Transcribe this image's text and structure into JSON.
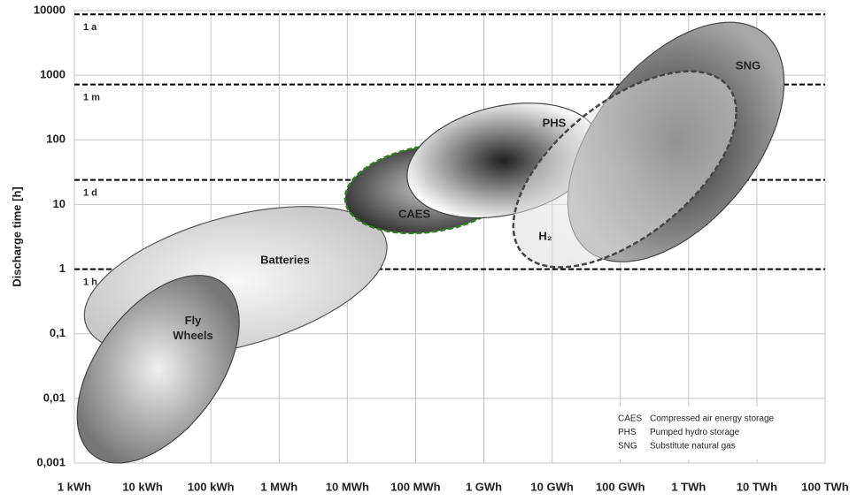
{
  "chart_data": {
    "type": "region",
    "y_label": "Discharge time [h]",
    "xscale": "log",
    "yscale": "log",
    "grid": true,
    "xlim": [
      1,
      100000000000
    ],
    "ylim": [
      0.001,
      10000
    ],
    "xticks": [
      {
        "value": 1,
        "label": "1 kWh"
      },
      {
        "value": 10,
        "label": "10 kWh"
      },
      {
        "value": 100,
        "label": "100 kWh"
      },
      {
        "value": 1000,
        "label": "1 MWh"
      },
      {
        "value": 10000,
        "label": "10 MWh"
      },
      {
        "value": 100000,
        "label": "100 MWh"
      },
      {
        "value": 1000000,
        "label": "1 GWh"
      },
      {
        "value": 10000000,
        "label": "10 GWh"
      },
      {
        "value": 100000000,
        "label": "100 GWh"
      },
      {
        "value": 1000000000,
        "label": "1 TWh"
      },
      {
        "value": 10000000000,
        "label": "10 TWh"
      },
      {
        "value": 100000000000,
        "label": "100 TWh"
      }
    ],
    "yticks": [
      {
        "value": 0.001,
        "label": "0,001"
      },
      {
        "value": 0.01,
        "label": "0,01"
      },
      {
        "value": 0.1,
        "label": "0,1"
      },
      1,
      10,
      100,
      1000,
      10000
    ],
    "reference_lines": [
      {
        "label": "1 h",
        "value": 1
      },
      {
        "label": "1 d",
        "value": 24
      },
      {
        "label": "1 m",
        "value": 720
      },
      {
        "label": "1 a",
        "value": 8760
      }
    ],
    "regions": [
      {
        "name": "Batteries",
        "energy_range": [
          1.4,
          38000
        ],
        "time_range": [
          0.045,
          9.3
        ],
        "color": "#c8c8c8",
        "center_color": "#f8f8f8",
        "border_color": "#555555",
        "border": "solid"
      },
      {
        "name": "Fly Wheels",
        "energy_range": [
          1.1,
          260
        ],
        "time_range": [
          0.001,
          0.8
        ],
        "color": "#777777",
        "center_color": "#f0f0f0",
        "border_color": "#444444",
        "border": "solid"
      },
      {
        "name": "CAES",
        "energy_range": [
          9300,
          2900000
        ],
        "time_range": [
          3.6,
          85
        ],
        "color": "#303030",
        "center_color": "#c8c8c8",
        "border_color": "#2e7d1e",
        "border": "dashed"
      },
      {
        "name": "PHS",
        "energy_range": [
          75000,
          50000000
        ],
        "time_range": [
          6.2,
          370
        ],
        "color": "#ffffff",
        "center_color": "#202020",
        "border_color": "#444444",
        "border": "solid"
      },
      {
        "name": "SNG",
        "energy_range": [
          17000000,
          25000000000
        ],
        "time_range": [
          1.3,
          6600
        ],
        "color": "#a8a8a8",
        "center_color": "#2a2a2a",
        "border_color": "#444444",
        "border": "solid"
      },
      {
        "name": "H₂",
        "energy_range": [
          2700000,
          5000000000
        ],
        "time_range": [
          1.07,
          1150
        ],
        "color": "#dcdcdc",
        "center_color": "#f4f4f4",
        "border_color": "#444444",
        "border": "dashed"
      }
    ],
    "legend": [
      {
        "abbr": "CAES",
        "text": "Compressed air energy storage"
      },
      {
        "abbr": "PHS",
        "text": "Pumped hydro storage"
      },
      {
        "abbr": "SNG",
        "text": "Substitute natural gas"
      }
    ]
  }
}
